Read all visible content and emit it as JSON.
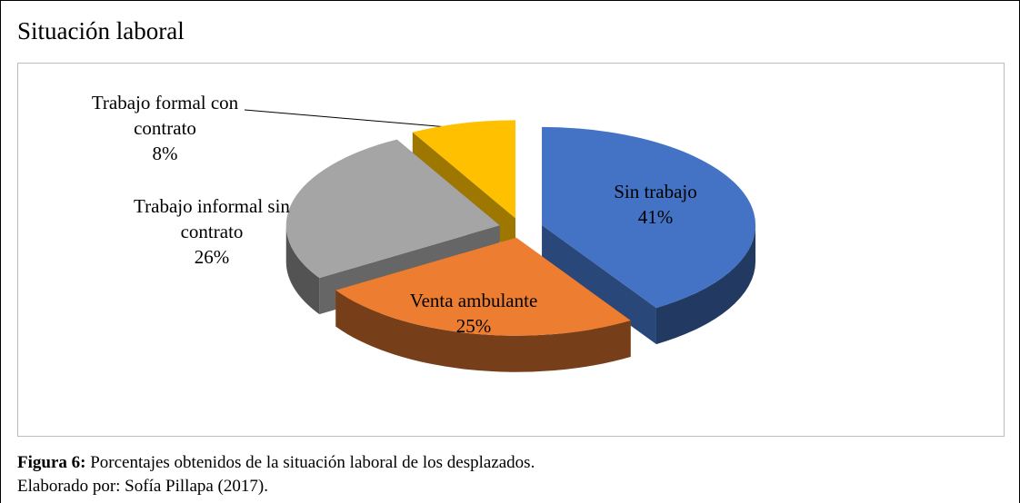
{
  "chart_data": {
    "type": "pie3d",
    "title": "Situación laboral",
    "categories": [
      "Sin trabajo",
      "Venta ambulante",
      "Trabajo informal sin contrato",
      "Trabajo formal con contrato"
    ],
    "values": [
      41,
      25,
      26,
      8
    ],
    "value_labels": [
      "41%",
      "25%",
      "26%",
      "8%"
    ],
    "colors": [
      "#4472c4",
      "#ed7d31",
      "#a5a5a5",
      "#ffc000"
    ]
  },
  "caption": {
    "label": "Figura 6:",
    "text": "Porcentajes obtenidos de la situación laboral de los desplazados.",
    "credit": "Elaborado por: Sofía Pillapa (2017)."
  }
}
